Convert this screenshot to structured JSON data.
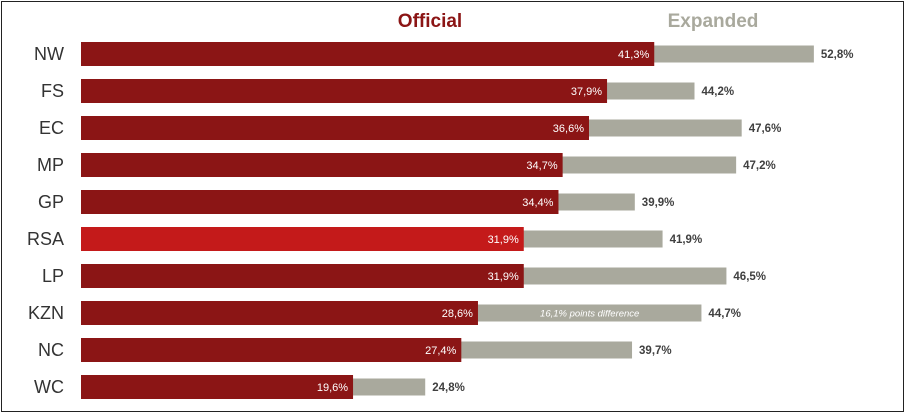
{
  "chart_data": {
    "type": "bar",
    "orientation": "horizontal",
    "layout": "overlapping",
    "categories": [
      "NW",
      "FS",
      "EC",
      "MP",
      "GP",
      "RSA",
      "LP",
      "KZN",
      "NC",
      "WC"
    ],
    "series": [
      {
        "name": "Official",
        "color": "#8b1515",
        "highlight_color": "#c41a1a",
        "values": [
          41.3,
          37.9,
          36.6,
          34.7,
          34.4,
          31.9,
          31.9,
          28.6,
          27.4,
          19.6
        ],
        "labels": [
          "41,3%",
          "37,9%",
          "36,6%",
          "34,7%",
          "34,4%",
          "31,9%",
          "31,9%",
          "28,6%",
          "27,4%",
          "19,6%"
        ]
      },
      {
        "name": "Expanded",
        "color": "#a9a99d",
        "values": [
          52.8,
          44.2,
          47.6,
          47.2,
          39.9,
          41.9,
          46.5,
          44.7,
          39.7,
          24.8
        ],
        "labels": [
          "52,8%",
          "44,2%",
          "47,6%",
          "47,2%",
          "39,9%",
          "41,9%",
          "46,5%",
          "44,7%",
          "39,7%",
          "24,8%"
        ]
      }
    ],
    "highlight_category": "RSA",
    "annotations": [
      {
        "category": "KZN",
        "text": "16,1% points difference"
      }
    ],
    "legend": {
      "position": "top",
      "entries": [
        "Official",
        "Expanded"
      ]
    },
    "grid": false,
    "xlim": [
      0,
      60
    ]
  }
}
